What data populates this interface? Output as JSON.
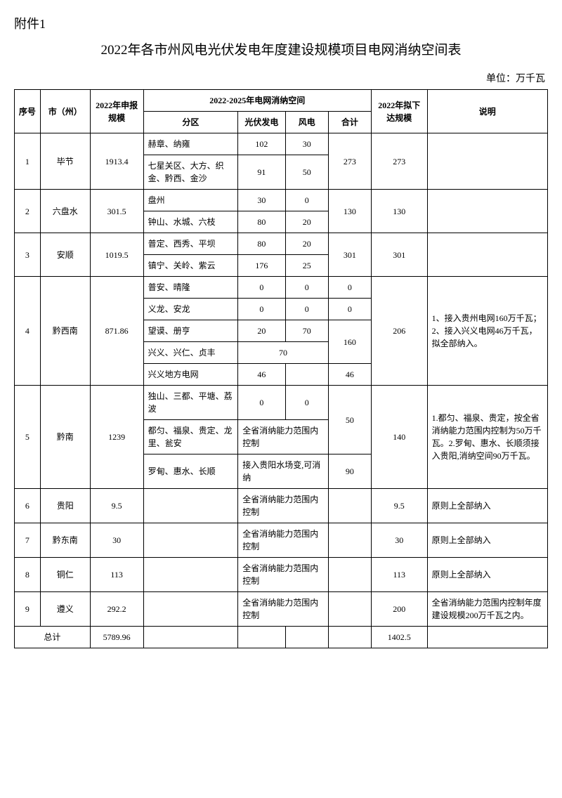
{
  "attachment_label": "附件1",
  "title": "2022年各市州风电光伏发电年度建设规模项目电网消纳空间表",
  "unit": "单位：万千瓦",
  "headers": {
    "seq": "序号",
    "city": "市（州）",
    "declared": "2022年申报规模",
    "capacity_group": "2022-2025年电网消纳空间",
    "zone": "分区",
    "pv": "光伏发电",
    "wind": "风电",
    "subtotal": "合计",
    "planned": "2022年拟下达规模",
    "note": "说明"
  },
  "r1": {
    "seq": "1",
    "city": "毕节",
    "declared": "1913.4",
    "z1": "赫章、纳雍",
    "pv1": "102",
    "wind1": "30",
    "z2": "七星关区、大方、织金、黔西、金沙",
    "pv2": "91",
    "wind2": "50",
    "sum": "273",
    "plan": "273",
    "note": ""
  },
  "r2": {
    "seq": "2",
    "city": "六盘水",
    "declared": "301.5",
    "z1": "盘州",
    "pv1": "30",
    "wind1": "0",
    "z2": "钟山、水城、六枝",
    "pv2": "80",
    "wind2": "20",
    "sum": "130",
    "plan": "130",
    "note": ""
  },
  "r3": {
    "seq": "3",
    "city": "安顺",
    "declared": "1019.5",
    "z1": "普定、西秀、平坝",
    "pv1": "80",
    "wind1": "20",
    "z2": "镇宁、关岭、紫云",
    "pv2": "176",
    "wind2": "25",
    "sum": "301",
    "plan": "301",
    "note": ""
  },
  "r4": {
    "seq": "4",
    "city": "黔西南",
    "declared": "871.86",
    "z1": "普安、晴隆",
    "pv1": "0",
    "wind1": "0",
    "sum1": "0",
    "z2": "义龙、安龙",
    "pv2": "0",
    "wind2": "0",
    "sum2": "0",
    "z3": "望谟、册亨",
    "pv3": "20",
    "wind3": "70",
    "z4": "兴义、兴仁、贞丰",
    "pvwind4": "70",
    "sum34": "160",
    "z5": "兴义地方电网",
    "pv5": "46",
    "wind5": "",
    "sum5": "46",
    "plan": "206",
    "note": "1、接入贵州电网160万千瓦；2、接入兴义电网46万千瓦，拟全部纳入。"
  },
  "r5": {
    "seq": "5",
    "city": "黔南",
    "declared": "1239",
    "z1": "独山、三都、平塘、荔波",
    "pv1": "0",
    "wind1": "0",
    "z2": "都匀、福泉、贵定、龙里、瓮安",
    "text2": "全省消纳能力范围内控制",
    "sum2": "50",
    "z3": "罗甸、惠水、长顺",
    "text3": "接入贵阳水场变,可消纳",
    "sum3": "90",
    "plan": "140",
    "note": "1.都匀、福泉、贵定，按全省消纳能力范围内控制为50万千瓦。2.罗甸、惠水、长顺须接入贵阳,消纳空间90万千瓦。"
  },
  "r6": {
    "seq": "6",
    "city": "贵阳",
    "declared": "9.5",
    "zone": "",
    "text": "全省消纳能力范围内控制",
    "sum": "",
    "plan": "9.5",
    "note": "原则上全部纳入"
  },
  "r7": {
    "seq": "7",
    "city": "黔东南",
    "declared": "30",
    "zone": "",
    "text": "全省消纳能力范围内控制",
    "sum": "",
    "plan": "30",
    "note": "原则上全部纳入"
  },
  "r8": {
    "seq": "8",
    "city": "铜仁",
    "declared": "113",
    "zone": "",
    "text": "全省消纳能力范围内控制",
    "sum": "",
    "plan": "113",
    "note": "原则上全部纳入"
  },
  "r9": {
    "seq": "9",
    "city": "遵义",
    "declared": "292.2",
    "zone": "",
    "text": "全省消纳能力范围内控制",
    "sum": "",
    "plan": "200",
    "note": "全省消纳能力范围内控制年度建设规模200万千瓦之内。"
  },
  "total": {
    "label": "总计",
    "declared": "5789.96",
    "plan": "1402.5"
  },
  "style": {
    "border_color": "#000000",
    "background_color": "#ffffff",
    "text_color": "#000000",
    "title_fontsize": 19,
    "body_fontsize": 12
  }
}
